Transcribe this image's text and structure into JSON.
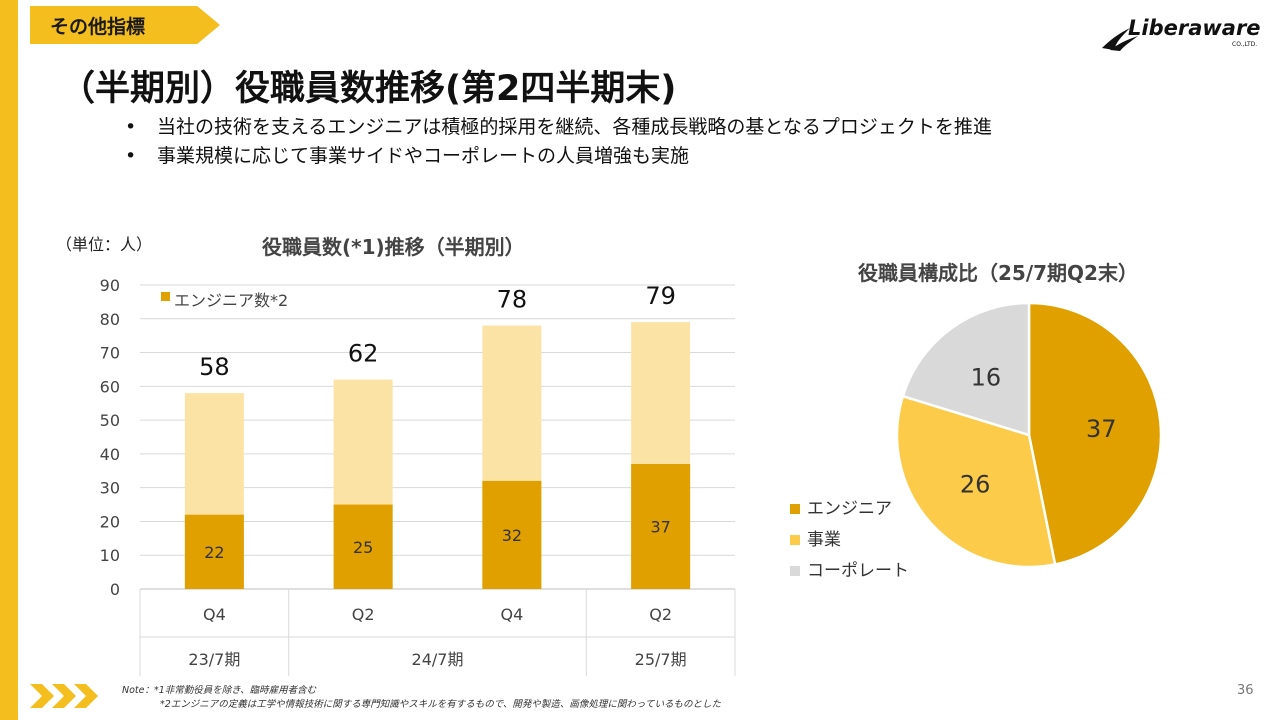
{
  "header": {
    "section_tag": "その他指標",
    "title": "（半期別）役職員数推移(第2四半期末)",
    "logo_text": "Liberaware",
    "logo_sub": "CO.,LTD."
  },
  "bullets": [
    "当社の技術を支えるエンジニアは積極的採用を継続、各種成長戦略の基となるプロジェクトを推進",
    "事業規模に応じて事業サイドやコーポレートの人員増強も実施"
  ],
  "unit_label": "（単位：人）",
  "chart_data": [
    {
      "type": "bar",
      "title": "役職員数(*1)推移（半期別）",
      "categories": [
        "Q4",
        "Q2",
        "Q4",
        "Q2"
      ],
      "groups": [
        {
          "label": "23/7期",
          "span": 1
        },
        {
          "label": "24/7期",
          "span": 2
        },
        {
          "label": "25/7期",
          "span": 1
        }
      ],
      "series": [
        {
          "name": "エンジニア数*2",
          "values": [
            22,
            25,
            32,
            37
          ],
          "color": "#e0a000"
        }
      ],
      "totals": [
        58,
        62,
        78,
        79
      ],
      "total_color": "#fbe3a6",
      "ylim": [
        0,
        90
      ],
      "yticks": [
        0,
        10,
        20,
        30,
        40,
        50,
        60,
        70,
        80,
        90
      ],
      "grid": true,
      "legend": "top-left"
    },
    {
      "type": "pie",
      "title": "役職員構成比（25/7期Q2末）",
      "labels": [
        "エンジニア",
        "事業",
        "コーポレート"
      ],
      "values": [
        37,
        26,
        16
      ],
      "colors": [
        "#e0a000",
        "#fccb4a",
        "#d9d9d9"
      ],
      "legend": "left"
    }
  ],
  "note": {
    "line1": "Note：*1非常勤役員を除き、臨時雇用者含む",
    "line2": "*2エンジニアの定義は工学や情報技術に関する専門知識やスキルを有するもので、開発や製造、画像処理に関わっているものとした"
  },
  "page_number": "36",
  "colors": {
    "accent": "#f4bf1e"
  }
}
